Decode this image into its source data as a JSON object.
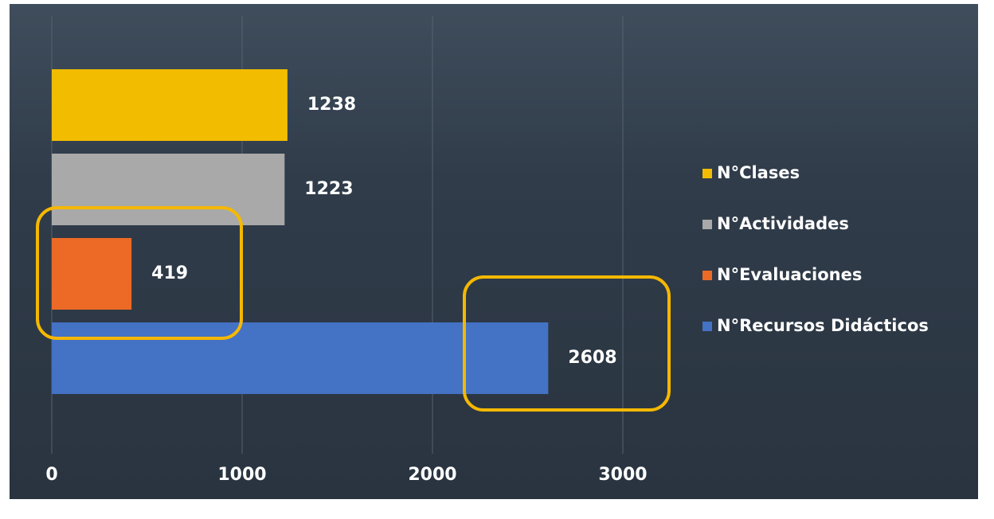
{
  "chart_data": {
    "type": "bar",
    "orientation": "horizontal",
    "series": [
      {
        "name": "N°Clases",
        "color": "#f2bd00",
        "values": [
          1238
        ]
      },
      {
        "name": "N°Actividades",
        "color": "#a9a9a9",
        "values": [
          1223
        ]
      },
      {
        "name": "N°Evaluaciones",
        "color": "#ec6a25",
        "values": [
          419
        ]
      },
      {
        "name": "N°Recursos Didácticos",
        "color": "#4472c4",
        "values": [
          2608
        ]
      }
    ],
    "xlim": [
      0,
      3000
    ],
    "xticks": [
      0,
      1000,
      2000,
      3000
    ],
    "grid": true,
    "legend": "right"
  }
}
